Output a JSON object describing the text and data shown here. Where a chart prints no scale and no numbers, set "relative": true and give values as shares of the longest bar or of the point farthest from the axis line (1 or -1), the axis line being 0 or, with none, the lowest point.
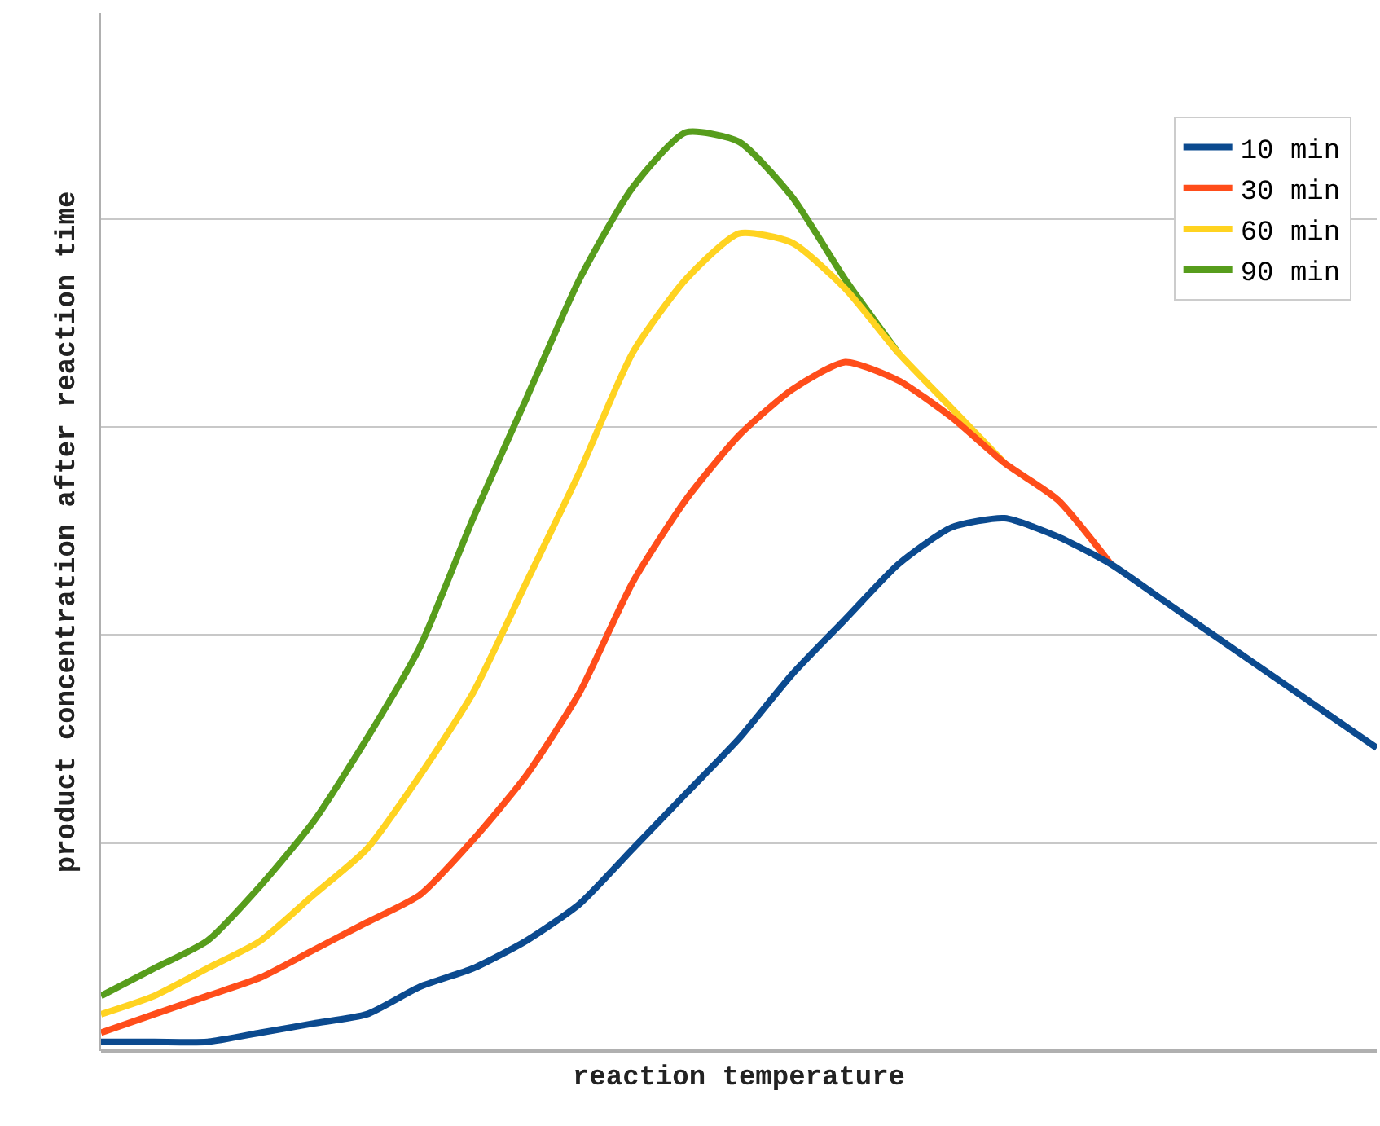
{
  "chart_data": {
    "type": "line",
    "relative": true,
    "xlabel": "reaction temperature",
    "ylabel": "product concentration after reaction time",
    "categories": [
      null,
      null,
      null,
      null,
      null,
      null,
      null,
      null,
      null,
      null,
      null,
      null,
      null,
      null,
      null,
      null,
      null,
      null,
      null,
      null,
      null,
      null,
      null,
      null,
      null
    ],
    "series": [
      {
        "name": "10 min",
        "color": "#0b4a8f",
        "values": [
          0.01,
          0.01,
          0.01,
          0.02,
          0.03,
          0.04,
          0.07,
          0.09,
          0.12,
          0.16,
          0.22,
          0.28,
          0.34,
          0.41,
          0.47,
          0.53,
          0.57,
          0.58,
          0.56,
          0.53,
          0.49,
          0.45,
          0.41,
          0.37,
          0.33
        ]
      },
      {
        "name": "30 min",
        "color": "#ff4d1a",
        "values": [
          0.02,
          0.04,
          0.06,
          0.08,
          0.11,
          0.14,
          0.17,
          0.23,
          0.3,
          0.39,
          0.51,
          0.6,
          0.67,
          0.72,
          0.75,
          0.73,
          0.69,
          0.64,
          0.6,
          0.53,
          null,
          null,
          null,
          null,
          null
        ]
      },
      {
        "name": "60 min",
        "color": "#ffd320",
        "values": [
          0.04,
          0.06,
          0.09,
          0.12,
          0.17,
          0.22,
          0.3,
          0.39,
          0.51,
          0.63,
          0.76,
          0.84,
          0.89,
          0.88,
          0.83,
          0.76,
          0.7,
          0.64,
          null,
          null,
          null,
          null,
          null,
          null,
          null
        ]
      },
      {
        "name": "90 min",
        "color": "#579d1c",
        "values": [
          0.06,
          0.09,
          0.12,
          0.18,
          0.25,
          0.34,
          0.44,
          0.58,
          0.71,
          0.84,
          0.94,
          1.0,
          0.99,
          0.93,
          0.84,
          0.76,
          null,
          null,
          null,
          null,
          null,
          null,
          null,
          null,
          null
        ]
      }
    ],
    "legend": "top right",
    "grid": "y",
    "marker": "none",
    "line_style": "solid"
  }
}
